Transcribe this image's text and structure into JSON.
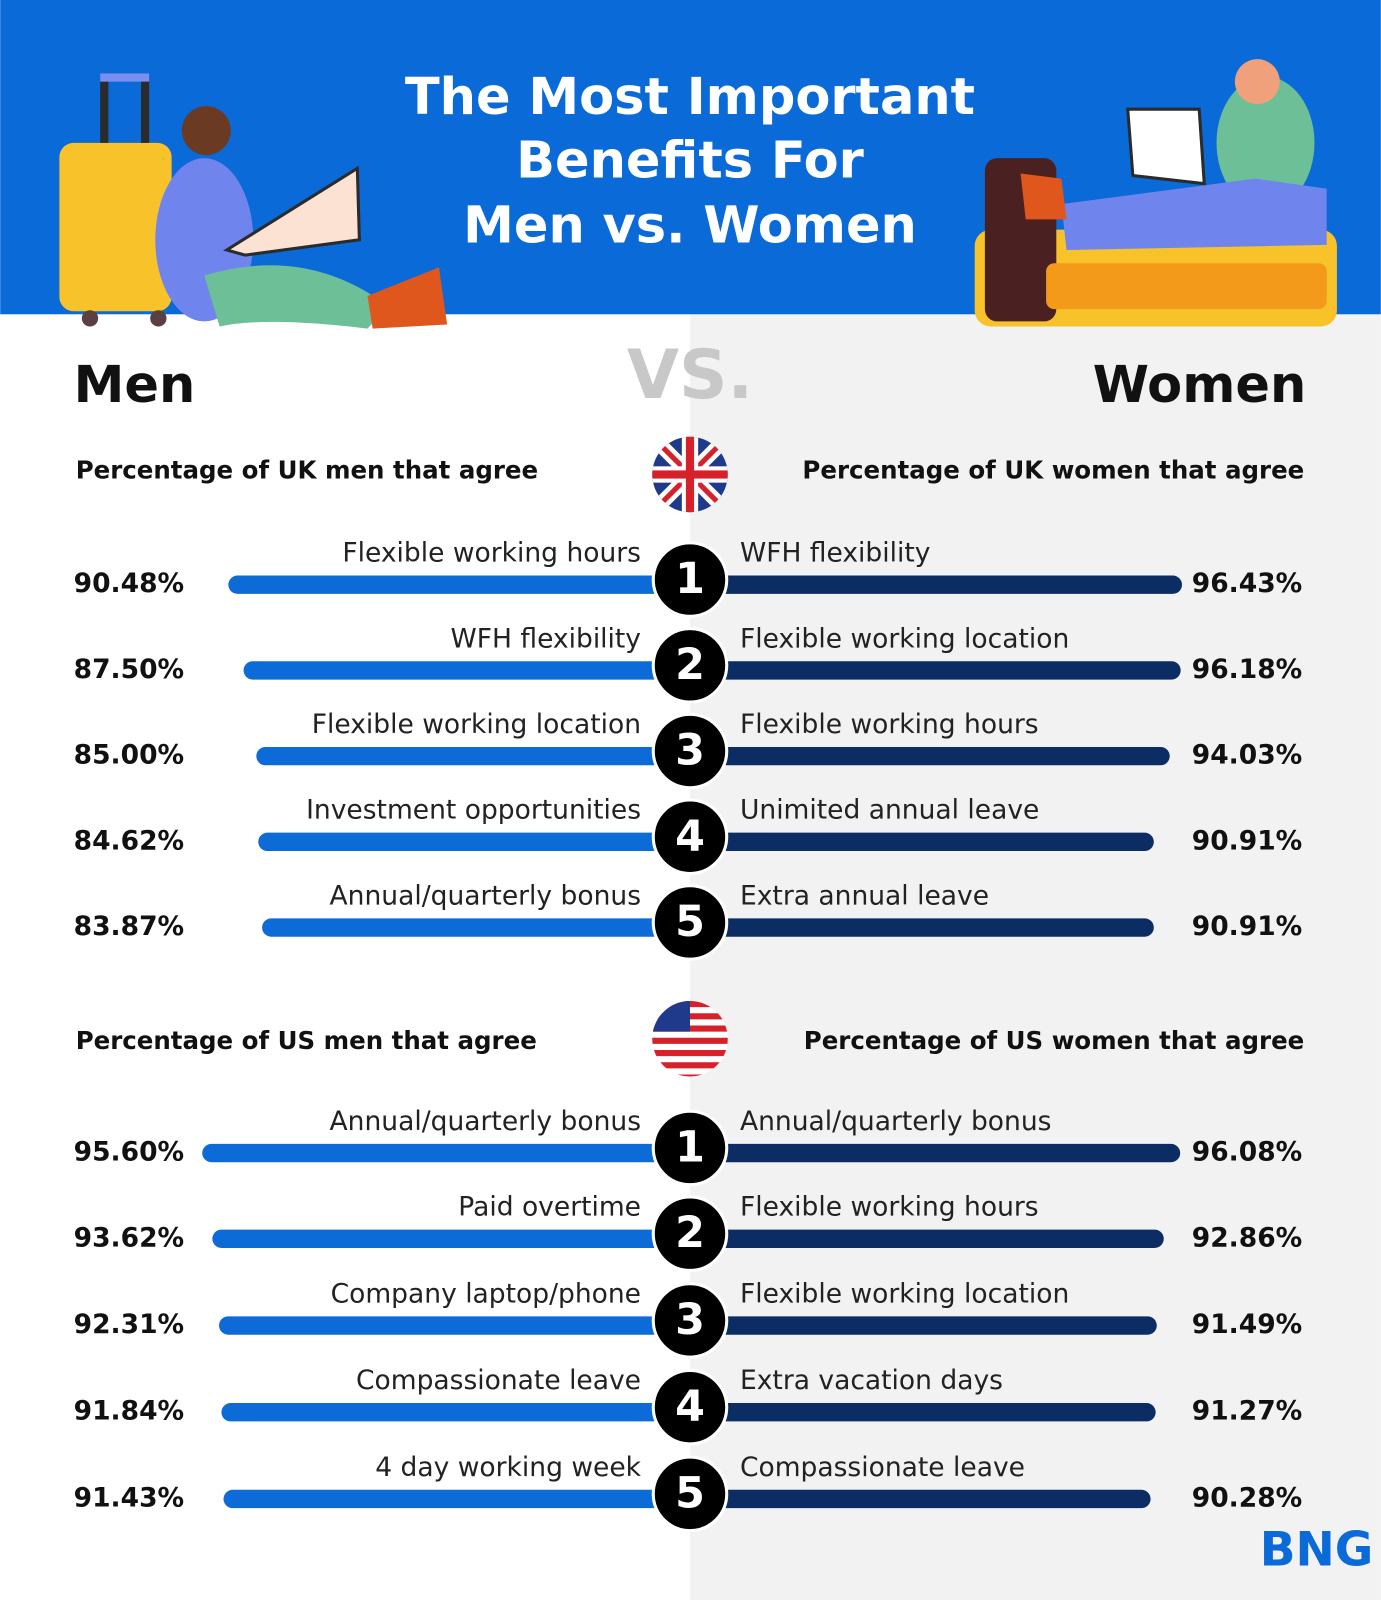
{
  "header": {
    "title_lines": [
      "The Most Important",
      "Benefits For",
      "Men vs. Women"
    ],
    "left": "Men",
    "vs": "VS.",
    "right": "Women",
    "logo": "BNG"
  },
  "chart_data": [
    {
      "type": "diverging-bar",
      "categories": [
        "1",
        "2",
        "3",
        "4",
        "5"
      ],
      "series": [
        {
          "name": "Percentage of UK men that agree",
          "color": "#0d6bd8",
          "labels": [
            "Flexible working hours",
            "WFH flexibility",
            "Flexible working location",
            "Investment opportunities",
            "Annual/quarterly bonus"
          ],
          "values": [
            90.48,
            87.5,
            85.0,
            84.62,
            83.87
          ],
          "value_labels": [
            "90.48%",
            "87.50%",
            "85.00%",
            "84.62%",
            "83.87%"
          ]
        },
        {
          "name": "Percentage of UK women that agree",
          "color": "#0b2d63",
          "labels": [
            "WFH flexibility",
            "Flexible working location",
            "Flexible working hours",
            "Unimited annual leave",
            "Extra annual leave"
          ],
          "values": [
            96.43,
            96.18,
            94.03,
            90.91,
            90.91
          ],
          "value_labels": [
            "96.43%",
            "96.18%",
            "94.03%",
            "90.91%",
            "90.91%"
          ]
        }
      ]
    },
    {
      "type": "diverging-bar",
      "categories": [
        "1",
        "2",
        "3",
        "4",
        "5"
      ],
      "series": [
        {
          "name": "Percentage of US men that agree",
          "color": "#0d6bd8",
          "labels": [
            "Annual/quarterly bonus",
            "Paid overtime",
            "Company laptop/phone",
            "Compassionate leave",
            "4 day working week"
          ],
          "values": [
            95.6,
            93.62,
            92.31,
            91.84,
            91.43
          ],
          "value_labels": [
            "95.60%",
            "93.62%",
            "92.31%",
            "91.84%",
            "91.43%"
          ]
        },
        {
          "name": "Percentage of US women that agree",
          "color": "#0b2d63",
          "labels": [
            "Annual/quarterly bonus",
            "Flexible working hours",
            "Flexible working location",
            "Extra vacation days",
            "Compassionate leave"
          ],
          "values": [
            96.08,
            92.86,
            91.49,
            91.27,
            90.28
          ],
          "value_labels": [
            "96.08%",
            "92.86%",
            "91.49%",
            "91.27%",
            "90.28%"
          ]
        }
      ]
    }
  ]
}
